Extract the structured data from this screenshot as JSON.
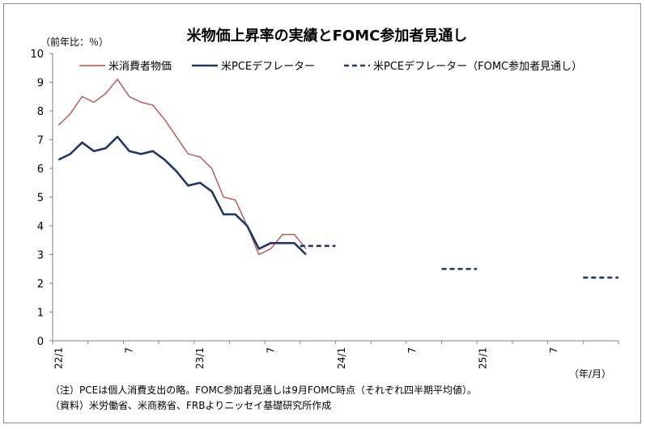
{
  "chart_data": {
    "type": "line",
    "title": "米物価上昇率の実績とFOMC参加者見通し",
    "ylabel": "（前年比：％）",
    "xlabel": "（年/月）",
    "ylim": [
      0,
      10
    ],
    "yticks": [
      0,
      1,
      2,
      3,
      4,
      5,
      6,
      7,
      8,
      9,
      10
    ],
    "xlim": [
      "2022-01",
      "2025-12"
    ],
    "xticks": [
      {
        "date": "2022-01",
        "label": "22/1"
      },
      {
        "date": "2022-07",
        "label": "7"
      },
      {
        "date": "2023-01",
        "label": "23/1"
      },
      {
        "date": "2023-07",
        "label": "7"
      },
      {
        "date": "2024-01",
        "label": "24/1"
      },
      {
        "date": "2024-07",
        "label": "7"
      },
      {
        "date": "2025-01",
        "label": "25/1"
      },
      {
        "date": "2025-07",
        "label": "7"
      }
    ],
    "legend_position": "top",
    "series": [
      {
        "name": "米消費者物価",
        "color": "#c0504d",
        "style": "solid",
        "x": [
          "2022-01",
          "2022-02",
          "2022-03",
          "2022-04",
          "2022-05",
          "2022-06",
          "2022-07",
          "2022-08",
          "2022-09",
          "2022-10",
          "2022-11",
          "2022-12",
          "2023-01",
          "2023-02",
          "2023-03",
          "2023-04",
          "2023-05",
          "2023-06",
          "2023-07",
          "2023-08",
          "2023-09",
          "2023-10"
        ],
        "values": [
          7.5,
          7.9,
          8.5,
          8.3,
          8.6,
          9.1,
          8.5,
          8.3,
          8.2,
          7.7,
          7.1,
          6.5,
          6.4,
          6.0,
          5.0,
          4.9,
          4.0,
          3.0,
          3.2,
          3.7,
          3.7,
          3.2
        ]
      },
      {
        "name": "米PCEデフレーター",
        "color": "#1f3864",
        "style": "solid",
        "x": [
          "2022-01",
          "2022-02",
          "2022-03",
          "2022-04",
          "2022-05",
          "2022-06",
          "2022-07",
          "2022-08",
          "2022-09",
          "2022-10",
          "2022-11",
          "2022-12",
          "2023-01",
          "2023-02",
          "2023-03",
          "2023-04",
          "2023-05",
          "2023-06",
          "2023-07",
          "2023-08",
          "2023-09",
          "2023-10"
        ],
        "values": [
          6.3,
          6.5,
          6.9,
          6.6,
          6.7,
          7.1,
          6.6,
          6.5,
          6.6,
          6.3,
          5.9,
          5.4,
          5.5,
          5.2,
          4.4,
          4.4,
          4.0,
          3.2,
          3.4,
          3.4,
          3.4,
          3.0
        ]
      },
      {
        "name": "米PCEデフレーター（FOMC参加者見通し）",
        "color": "#1f3864",
        "style": "dashed",
        "segments": [
          {
            "x": [
              "2023-10",
              "2023-12"
            ],
            "value": 3.3
          },
          {
            "x": [
              "2024-10",
              "2024-12"
            ],
            "value": 2.5
          },
          {
            "x": [
              "2025-10",
              "2025-12"
            ],
            "value": 2.2
          }
        ]
      }
    ]
  },
  "notes": {
    "note1": "（注）PCEは個人消費支出の略。FOMC参加者見通しは9月FOMC時点（それぞれ四半期平均値）。",
    "note2": "（資料）米労働省、米商務省、FRBよりニッセイ基礎研究所作成"
  }
}
